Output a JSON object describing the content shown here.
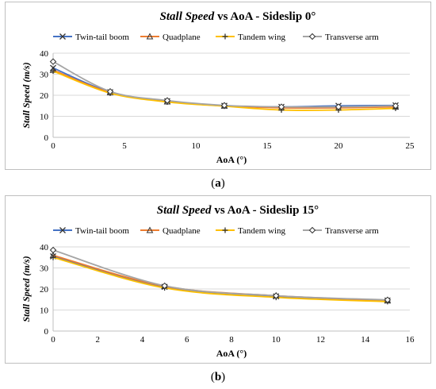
{
  "chart_data": [
    {
      "type": "line",
      "title_italic": "Stall Speed",
      "title_rest": " vs AoA - Sideslip 0°",
      "xlabel": "AoA (°)",
      "ylabel": "Stall Speed (m/s)",
      "xlim": [
        0,
        25
      ],
      "ylim": [
        0,
        40
      ],
      "xticks": [
        0,
        5,
        10,
        15,
        20,
        25
      ],
      "yticks": [
        0,
        10,
        20,
        30,
        40
      ],
      "x": [
        0,
        4,
        8,
        12,
        16,
        20,
        24
      ],
      "legend_position": "top",
      "caption_letter": "a",
      "series": [
        {
          "name": "Twin-tail boom",
          "color": "#4472c4",
          "marker": "x",
          "values": [
            33,
            21.5,
            17.2,
            15.0,
            14.5,
            15.0,
            15.2
          ]
        },
        {
          "name": "Quadplane",
          "color": "#ed7d31",
          "marker": "triangle",
          "values": [
            32,
            21.3,
            17.0,
            15.0,
            14.0,
            14.0,
            14.5
          ]
        },
        {
          "name": "Tandem wing",
          "color": "#ffc000",
          "marker": "plus",
          "values": [
            31.5,
            21.0,
            16.8,
            14.8,
            13.0,
            13.0,
            13.8
          ]
        },
        {
          "name": "Transverse arm",
          "color": "#a5a5a5",
          "marker": "diamond",
          "values": [
            36,
            21.8,
            17.5,
            15.2,
            14.5,
            14.5,
            15.0
          ]
        }
      ]
    },
    {
      "type": "line",
      "title_italic": "Stall Speed",
      "title_rest": " vs AoA - Sideslip 15°",
      "xlabel": "AoA (°)",
      "ylabel": "Stall Speed (m/s)",
      "xlim": [
        0,
        16
      ],
      "ylim": [
        0,
        40
      ],
      "xticks": [
        0,
        2,
        4,
        6,
        8,
        10,
        12,
        14,
        16
      ],
      "yticks": [
        0,
        10,
        20,
        30,
        40
      ],
      "x": [
        0,
        5,
        10,
        15
      ],
      "legend_position": "top",
      "caption_letter": "b",
      "series": [
        {
          "name": "Twin-tail boom",
          "color": "#4472c4",
          "marker": "x",
          "values": [
            35.5,
            21.0,
            16.5,
            14.5
          ]
        },
        {
          "name": "Quadplane",
          "color": "#ed7d31",
          "marker": "triangle",
          "values": [
            36.0,
            21.3,
            16.8,
            14.5
          ]
        },
        {
          "name": "Tandem wing",
          "color": "#ffc000",
          "marker": "plus",
          "values": [
            35.0,
            20.5,
            16.0,
            14.0
          ]
        },
        {
          "name": "Transverse arm",
          "color": "#a5a5a5",
          "marker": "diamond",
          "values": [
            38.5,
            21.5,
            16.8,
            14.8
          ]
        }
      ]
    }
  ],
  "captions": {
    "a_open": "(",
    "a_letter": "a",
    "a_close": ")",
    "b_open": "(",
    "b_letter": "b",
    "b_close": ")"
  }
}
